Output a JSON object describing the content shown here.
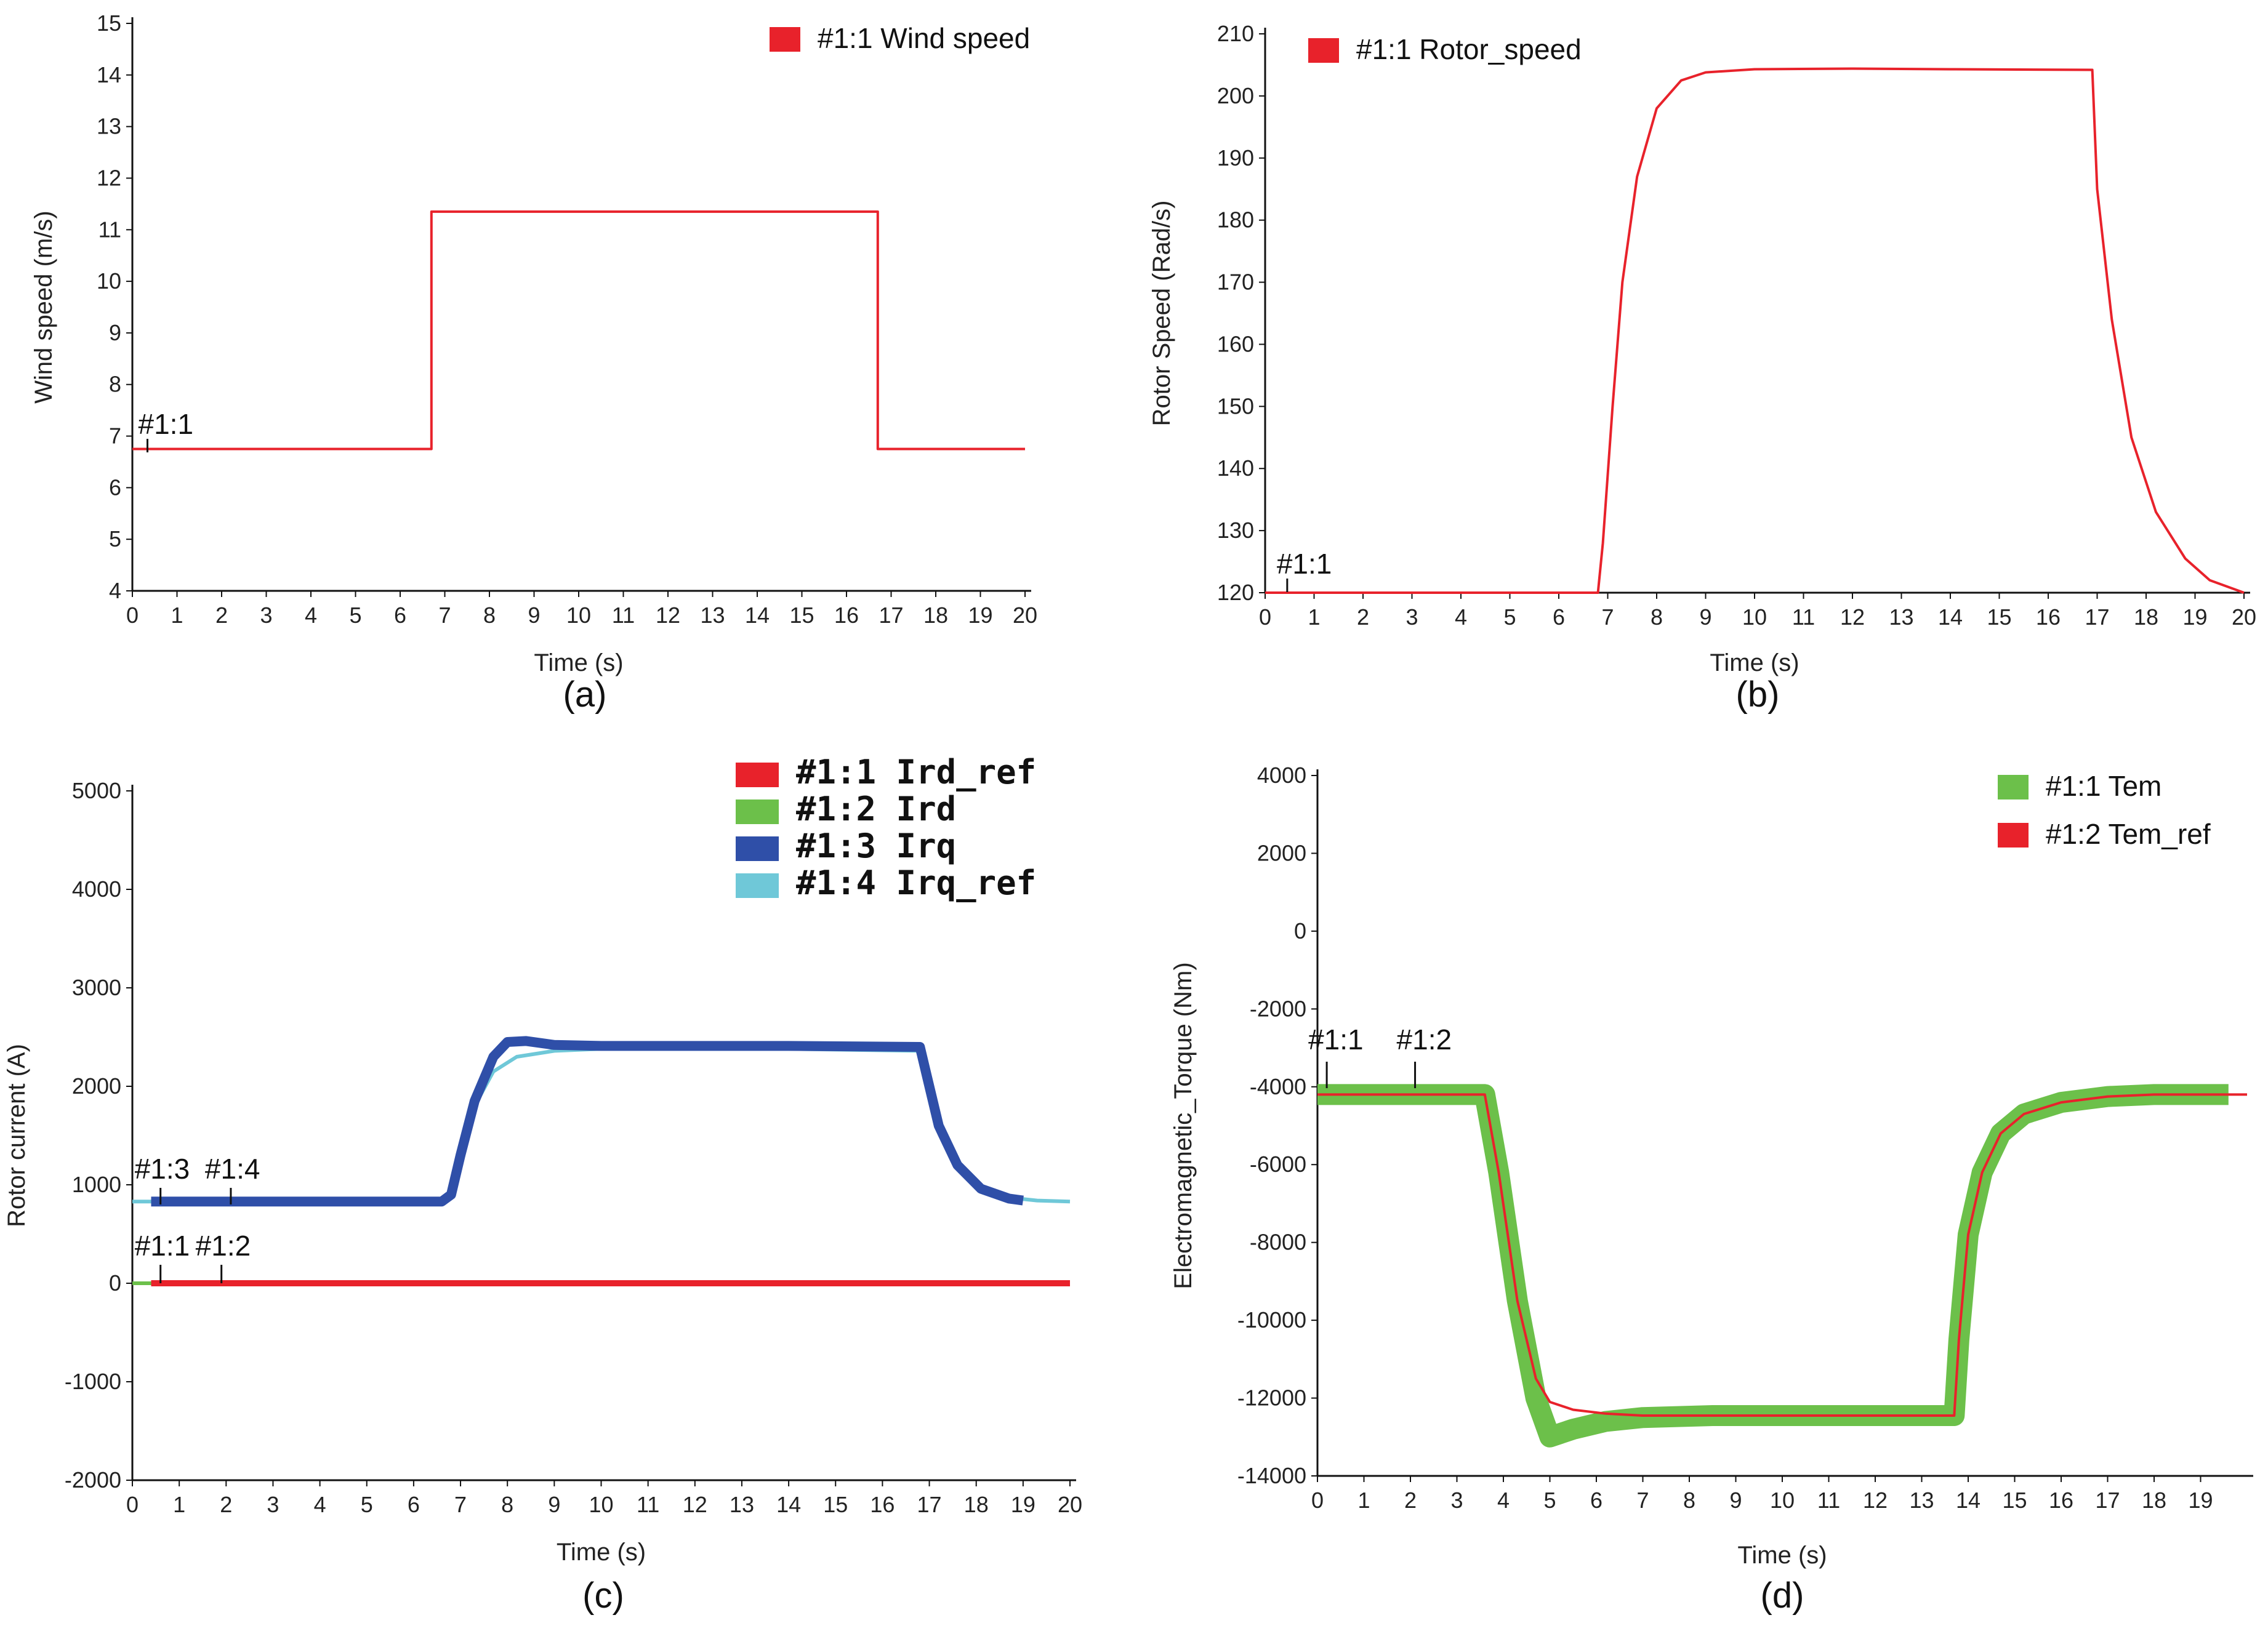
{
  "colors": {
    "red": "#e8222b",
    "green": "#6cc04a",
    "blue": "#2f4fa8",
    "cyan": "#6fc8d8",
    "axis": "#111111"
  },
  "chart_data": [
    {
      "id": "a",
      "type": "line",
      "panel_label": "(a)",
      "xlabel": "Time (s)",
      "ylabel": "Wind speed (m/s)",
      "xlim": [
        0,
        20
      ],
      "ylim": [
        4,
        15
      ],
      "x_ticks": [
        0,
        1,
        2,
        3,
        4,
        5,
        6,
        7,
        8,
        9,
        10,
        11,
        12,
        13,
        14,
        15,
        16,
        17,
        18,
        19,
        20
      ],
      "y_ticks": [
        4,
        5,
        6,
        7,
        8,
        9,
        10,
        11,
        12,
        13,
        14,
        15
      ],
      "legend": [
        {
          "label": "#1:1 Wind speed",
          "color": "#e8222b"
        }
      ],
      "series": [
        {
          "name": "#1:1 Wind speed",
          "color": "#e8222b",
          "x": [
            0,
            6.7,
            6.7,
            16.7,
            16.7,
            20
          ],
          "y": [
            6.75,
            6.75,
            11.35,
            11.35,
            6.75,
            6.75
          ]
        }
      ],
      "markers": [
        {
          "label": "#1:1",
          "x": 0.2
        }
      ]
    },
    {
      "id": "b",
      "type": "line",
      "panel_label": "(b)",
      "xlabel": "Time (s)",
      "ylabel": "Rotor Speed (Rad/s)",
      "xlim": [
        0,
        20
      ],
      "ylim": [
        120,
        210
      ],
      "x_ticks": [
        0,
        1,
        2,
        3,
        4,
        5,
        6,
        7,
        8,
        9,
        10,
        11,
        12,
        13,
        14,
        15,
        16,
        17,
        18,
        19,
        20
      ],
      "y_ticks": [
        120,
        130,
        140,
        150,
        160,
        170,
        180,
        190,
        200,
        210
      ],
      "legend": [
        {
          "label": "#1:1 Rotor_speed",
          "color": "#e8222b"
        }
      ],
      "series": [
        {
          "name": "#1:1 Rotor_speed",
          "color": "#e8222b",
          "x": [
            0,
            6.8,
            6.9,
            7.1,
            7.3,
            7.6,
            8.0,
            8.5,
            9.0,
            10.0,
            12.0,
            14.0,
            16.9,
            17.0,
            17.3,
            17.7,
            18.2,
            18.8,
            19.3,
            20.0
          ],
          "y": [
            120,
            120,
            128,
            150,
            170,
            187,
            198,
            202.5,
            203.8,
            204.3,
            204.4,
            204.3,
            204.2,
            185,
            164,
            145,
            133,
            125.5,
            122,
            120
          ]
        }
      ],
      "markers": [
        {
          "label": "#1:1",
          "x": 0.3
        }
      ]
    },
    {
      "id": "c",
      "type": "line",
      "panel_label": "(c)",
      "xlabel": "Time (s)",
      "ylabel": "Rotor current (A)",
      "xlim": [
        0,
        20
      ],
      "ylim": [
        -2000,
        5000
      ],
      "x_ticks": [
        0,
        1,
        2,
        3,
        4,
        5,
        6,
        7,
        8,
        9,
        10,
        11,
        12,
        13,
        14,
        15,
        16,
        17,
        18,
        19,
        20
      ],
      "y_ticks": [
        -2000,
        -1000,
        0,
        1000,
        2000,
        3000,
        4000,
        5000
      ],
      "legend": [
        {
          "label": "#1:1 Ird_ref",
          "color": "#e8222b"
        },
        {
          "label": "#1:2 Ird",
          "color": "#6cc04a"
        },
        {
          "label": "#1:3 Irq",
          "color": "#2f4fa8"
        },
        {
          "label": "#1:4 Irq_ref",
          "color": "#6fc8d8"
        }
      ],
      "series": [
        {
          "name": "#1:4 Irq_ref",
          "color": "#6fc8d8",
          "x": [
            0,
            6.6,
            6.8,
            7.0,
            7.3,
            7.7,
            8.2,
            9.0,
            10.0,
            14.0,
            16.8,
            16.95,
            17.2,
            17.6,
            18.1,
            18.7,
            19.3,
            20.0
          ],
          "y": [
            830,
            830,
            900,
            1300,
            1800,
            2150,
            2300,
            2360,
            2380,
            2380,
            2360,
            2100,
            1600,
            1200,
            980,
            870,
            840,
            830
          ]
        },
        {
          "name": "#1:3 Irq",
          "color": "#2f4fa8",
          "x": [
            0.4,
            6.6,
            6.8,
            7.0,
            7.3,
            7.7,
            8.0,
            8.4,
            9.0,
            10.0,
            14.0,
            16.8,
            16.95,
            17.2,
            17.6,
            18.1,
            18.7,
            19.0
          ],
          "y": [
            830,
            830,
            900,
            1300,
            1850,
            2300,
            2450,
            2460,
            2420,
            2410,
            2410,
            2400,
            2100,
            1600,
            1200,
            960,
            860,
            840
          ]
        },
        {
          "name": "#1:2 Ird",
          "color": "#6cc04a",
          "x": [
            0,
            20
          ],
          "y": [
            0,
            0
          ]
        },
        {
          "name": "#1:1 Ird_ref",
          "color": "#e8222b",
          "x": [
            0.4,
            20
          ],
          "y": [
            0,
            0
          ]
        }
      ],
      "markers": [
        {
          "label": "#1:3",
          "x": 0.6
        },
        {
          "label": "#1:4",
          "x": 2.1
        },
        {
          "label": "#1:1",
          "x": 0.6
        },
        {
          "label": "#1:2",
          "x": 1.9
        }
      ]
    },
    {
      "id": "d",
      "type": "line",
      "panel_label": "(d)",
      "xlabel": "Time (s)",
      "ylabel": "Electromagnetic_Torque (Nm)",
      "xlim": [
        0,
        20
      ],
      "ylim": [
        -14000,
        4000
      ],
      "x_ticks": [
        0,
        1,
        2,
        3,
        4,
        5,
        6,
        7,
        8,
        9,
        10,
        11,
        12,
        13,
        14,
        15,
        16,
        17,
        18,
        19
      ],
      "y_ticks": [
        -14000,
        -12000,
        -10000,
        -8000,
        -6000,
        -4000,
        -2000,
        0,
        2000,
        4000
      ],
      "legend": [
        {
          "label": "#1:1 Tem",
          "color": "#6cc04a"
        },
        {
          "label": "#1:2 Tem_ref",
          "color": "#e8222b"
        }
      ],
      "series": [
        {
          "name": "#1:1 Tem",
          "color": "#6cc04a",
          "x": [
            0,
            3.6,
            3.9,
            4.3,
            4.7,
            5.0,
            5.5,
            6.2,
            7.0,
            8.5,
            10.0,
            12.0,
            13.7,
            13.8,
            14.0,
            14.3,
            14.7,
            15.2,
            16.0,
            17.0,
            18.0,
            19.0,
            19.6
          ],
          "y": [
            -4200,
            -4200,
            -6200,
            -9500,
            -12000,
            -13000,
            -12800,
            -12600,
            -12500,
            -12450,
            -12450,
            -12450,
            -12450,
            -10500,
            -7800,
            -6200,
            -5200,
            -4700,
            -4400,
            -4250,
            -4200,
            -4200,
            -4200
          ]
        },
        {
          "name": "#1:2 Tem_ref",
          "color": "#e8222b",
          "x": [
            0,
            3.6,
            3.9,
            4.3,
            4.7,
            5.0,
            5.5,
            6.2,
            7.0,
            8.5,
            10.0,
            12.0,
            13.7,
            13.8,
            14.0,
            14.3,
            14.7,
            15.2,
            16.0,
            17.0,
            18.0,
            19.0,
            20.0
          ],
          "y": [
            -4200,
            -4200,
            -6200,
            -9500,
            -11500,
            -12100,
            -12300,
            -12400,
            -12450,
            -12450,
            -12450,
            -12450,
            -12450,
            -10500,
            -7800,
            -6200,
            -5200,
            -4700,
            -4400,
            -4250,
            -4200,
            -4200,
            -4200
          ]
        }
      ],
      "markers": [
        {
          "label": "#1:1",
          "x": 0.2
        },
        {
          "label": "#1:2",
          "x": 2.1
        }
      ]
    }
  ]
}
